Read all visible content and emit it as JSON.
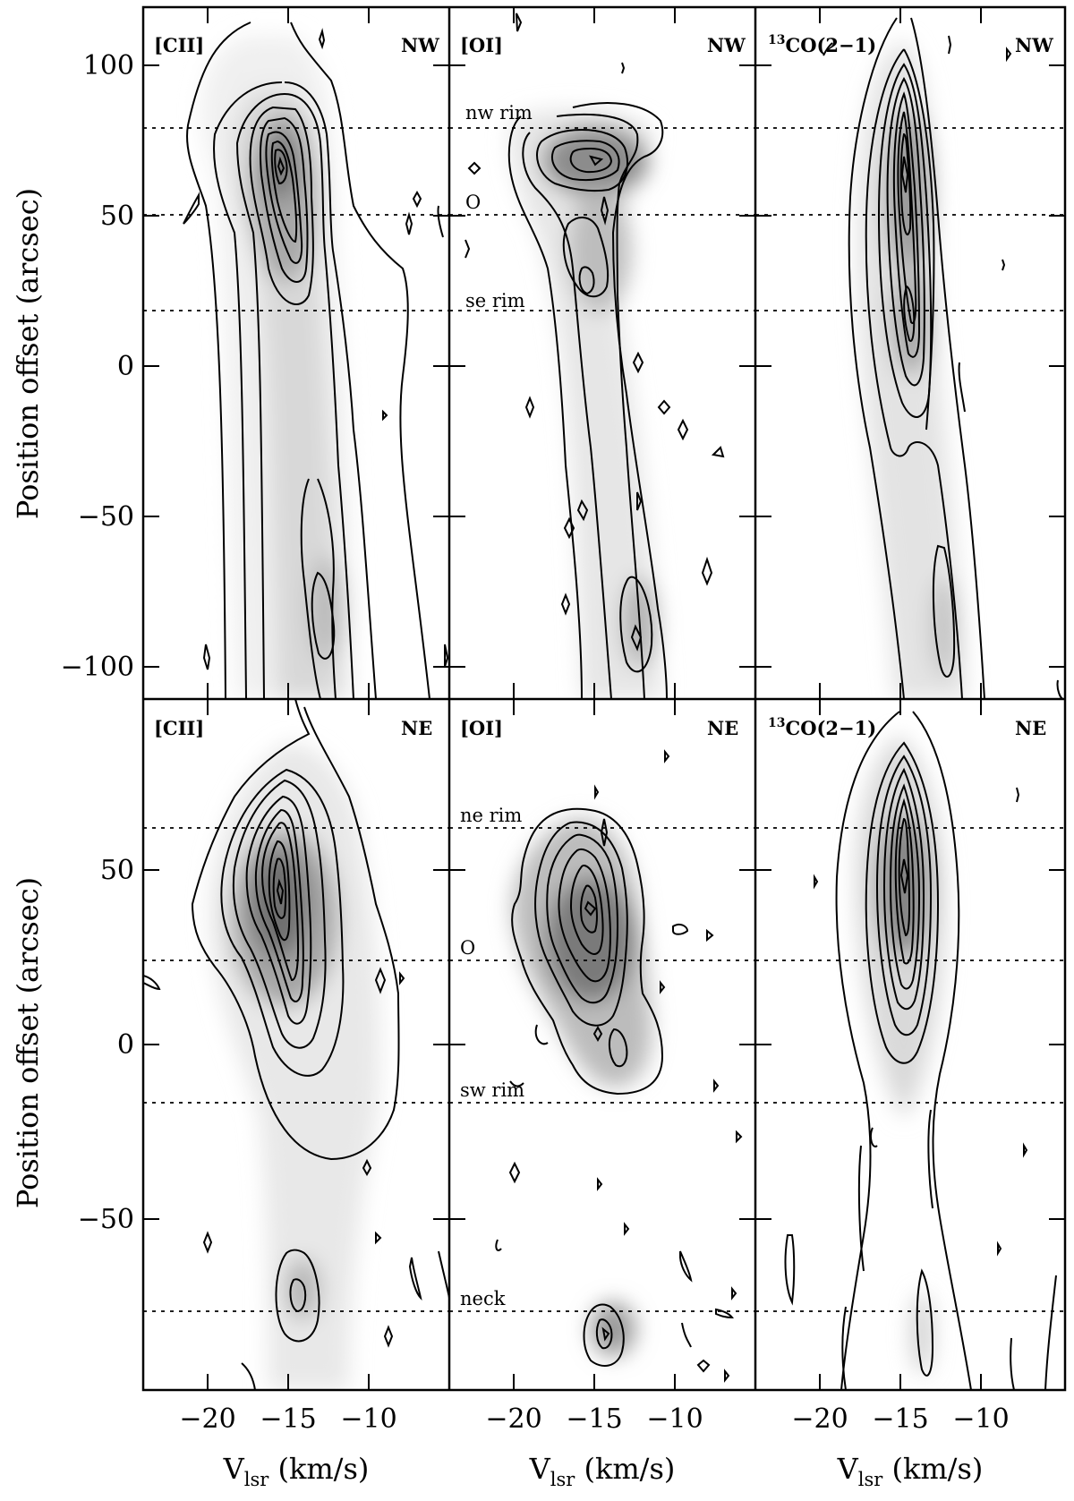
{
  "chart_data": [
    {
      "type": "contour",
      "panel": "top-left",
      "label": "[CII]",
      "direction": "NW",
      "xlabel": "V_lsr (km/s)",
      "ylabel": "Position offset (arcsec)",
      "xlim": [
        -24,
        -5
      ],
      "ylim": [
        -110,
        120
      ],
      "xticks": [
        -20,
        -15,
        -10
      ],
      "yticks": [
        -100,
        -50,
        0,
        50,
        100
      ],
      "reference_lines": [
        80,
        51,
        19
      ],
      "annotations": [],
      "peaks": [
        {
          "v": -15.0,
          "offset": 66
        },
        {
          "v": -14.0,
          "offset": 30
        },
        {
          "v": -12.8,
          "offset": -85
        }
      ]
    },
    {
      "type": "contour",
      "panel": "top-middle",
      "label": "[OI]",
      "direction": "NW",
      "xlabel": "V_lsr (km/s)",
      "ylabel": "",
      "xlim": [
        -24,
        -5
      ],
      "ylim": [
        -110,
        120
      ],
      "xticks": [
        -20,
        -15,
        -10
      ],
      "yticks": [
        -100,
        -50,
        0,
        50,
        100
      ],
      "reference_lines": [
        80,
        51,
        19
      ],
      "annotations": [
        {
          "text": "nw rim",
          "offset": 80
        },
        {
          "text": "O",
          "offset": 51
        },
        {
          "text": "se rim",
          "offset": 19
        }
      ],
      "peaks": [
        {
          "v": -14.2,
          "offset": 68
        },
        {
          "v": -13.5,
          "offset": 30
        },
        {
          "v": -12.0,
          "offset": -88
        }
      ]
    },
    {
      "type": "contour",
      "panel": "top-right",
      "label": "13CO(2-1)",
      "direction": "NW",
      "xlabel": "V_lsr (km/s)",
      "ylabel": "",
      "xlim": [
        -24,
        -5
      ],
      "ylim": [
        -110,
        120
      ],
      "xticks": [
        -20,
        -15,
        -10
      ],
      "yticks": [
        -100,
        -50,
        0,
        50,
        100
      ],
      "reference_lines": [
        80,
        51,
        19
      ],
      "annotations": [],
      "peaks": [
        {
          "v": -14.8,
          "offset": 62
        },
        {
          "v": -14.5,
          "offset": 18
        },
        {
          "v": -12.5,
          "offset": -90
        }
      ]
    },
    {
      "type": "contour",
      "panel": "bottom-left",
      "label": "[CII]",
      "direction": "NE",
      "xlabel": "V_lsr (km/s)",
      "ylabel": "Position offset (arcsec)",
      "xlim": [
        -24,
        -5
      ],
      "ylim": [
        -96,
        96
      ],
      "xticks": [
        -20,
        -15,
        -10
      ],
      "yticks": [
        -50,
        0,
        50
      ],
      "reference_lines": [
        62,
        25,
        -16,
        -75
      ],
      "annotations": [],
      "peaks": [
        {
          "v": -15.0,
          "offset": 28
        },
        {
          "v": -14.0,
          "offset": -72
        }
      ]
    },
    {
      "type": "contour",
      "panel": "bottom-middle",
      "label": "[OI]",
      "direction": "NE",
      "xlabel": "V_lsr (km/s)",
      "ylabel": "",
      "xlim": [
        -24,
        -5
      ],
      "ylim": [
        -96,
        96
      ],
      "xticks": [
        -20,
        -15,
        -10
      ],
      "yticks": [
        -50,
        0,
        50
      ],
      "reference_lines": [
        62,
        25,
        -16,
        -75
      ],
      "annotations": [
        {
          "text": "ne rim",
          "offset": 62
        },
        {
          "text": "O",
          "offset": 25
        },
        {
          "text": "sw rim",
          "offset": -14
        },
        {
          "text": "neck",
          "offset": -75
        }
      ],
      "peaks": [
        {
          "v": -14.2,
          "offset": 24
        },
        {
          "v": -14.0,
          "offset": -75
        }
      ]
    },
    {
      "type": "contour",
      "panel": "bottom-right",
      "label": "13CO(2-1)",
      "direction": "NE",
      "xlabel": "V_lsr (km/s)",
      "ylabel": "",
      "xlim": [
        -24,
        -5
      ],
      "ylim": [
        -96,
        96
      ],
      "xticks": [
        -20,
        -15,
        -10
      ],
      "yticks": [
        -50,
        0,
        50
      ],
      "reference_lines": [
        62,
        25,
        -16,
        -75
      ],
      "annotations": [],
      "peaks": [
        {
          "v": -14.8,
          "offset": 46
        }
      ]
    }
  ],
  "text": {
    "label_cii": "[CII]",
    "label_oi": "[OI]",
    "label_13co_sup": "13",
    "label_13co_main": "CO(2−1)",
    "dir_nw": "NW",
    "dir_ne": "NE",
    "ylabel": "Position offset (arcsec)",
    "xlabel_main": "V",
    "xlabel_sub": "lsr",
    "xlabel_unit": " (km/s)",
    "anno_nw_rim": "nw rim",
    "anno_o": "O",
    "anno_se_rim": "se rim",
    "anno_ne_rim": "ne rim",
    "anno_sw_rim": "sw rim",
    "anno_neck": "neck",
    "xtick_m20": "−20",
    "xtick_m15": "−15",
    "xtick_m10": "−10",
    "ytick_100": "100",
    "ytick_50": "50",
    "ytick_0": "0",
    "ytick_m50": "−50",
    "ytick_m100": "−100"
  },
  "colors": {
    "contour": "#000000",
    "background": "#ffffff",
    "emission_peak": "#6e6e6e",
    "emission_faint": "#f2f2f2"
  }
}
